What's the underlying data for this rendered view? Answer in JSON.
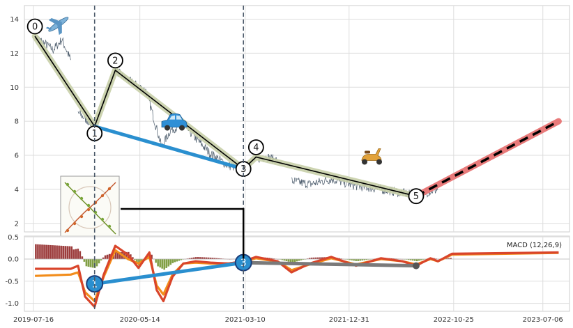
{
  "chart_data": [
    {
      "type": "line",
      "panel": "price",
      "title": "",
      "xlabel": "",
      "ylabel": "",
      "xlim": [
        "2019-06-20",
        "2023-09-20"
      ],
      "ylim": [
        1.5,
        14.8
      ],
      "yticks": [
        2,
        4,
        6,
        8,
        10,
        12,
        14
      ],
      "grid": true,
      "price_segments": [
        {
          "x": [
            "2019-07-20",
            "2019-08-15",
            "2019-09-10",
            "2019-10-05",
            "2019-10-30"
          ],
          "y": [
            13.0,
            12.6,
            12.2,
            12.8,
            11.6
          ]
        },
        {
          "x": [
            "2019-11-20",
            "2020-01-06",
            "2020-02-01",
            "2020-03-05",
            "2020-04-10",
            "2020-06-01",
            "2020-07-15",
            "2020-08-10",
            "2020-09-15",
            "2020-10-20",
            "2020-12-01",
            "2021-01-20",
            "2021-03-05",
            "2021-04-10",
            "2021-05-10",
            "2021-06-10"
          ],
          "y": [
            8.5,
            7.7,
            9.2,
            11.0,
            10.4,
            9.8,
            6.5,
            7.5,
            7.8,
            7.0,
            6.1,
            5.4,
            5.2,
            5.8,
            5.9,
            5.7
          ]
        },
        {
          "x": [
            "2021-07-20",
            "2021-09-10",
            "2021-11-10",
            "2022-01-20",
            "2022-04-01",
            "2022-06-01",
            "2022-07-10",
            "2022-08-20",
            "2022-09-10"
          ],
          "y": [
            4.5,
            4.3,
            4.6,
            4.2,
            4.0,
            3.8,
            3.6,
            3.9,
            4.0
          ]
        }
      ],
      "waves": {
        "labels": [
          "0",
          "1",
          "2",
          "3",
          "4",
          "5"
        ],
        "x": [
          "2019-07-20",
          "2020-01-06",
          "2020-03-05",
          "2021-03-05",
          "2021-04-10",
          "2022-07-10"
        ],
        "y": [
          13.0,
          7.7,
          11.0,
          5.2,
          5.9,
          3.6
        ]
      },
      "blue_trend": {
        "x": [
          "2020-01-06",
          "2021-03-05"
        ],
        "y": [
          7.7,
          5.2
        ]
      },
      "projection": {
        "x": [
          "2022-07-10",
          "2023-08-20"
        ],
        "y": [
          3.6,
          8.0
        ]
      },
      "vlines": [
        "2020-01-06",
        "2021-03-05"
      ],
      "icons": [
        {
          "name": "airplane-icon",
          "x": "2019-09-25",
          "y": 13.7
        },
        {
          "name": "car-icon",
          "x": "2020-08-20",
          "y": 7.9
        },
        {
          "name": "scooter-icon",
          "x": "2022-03-05",
          "y": 5.9
        }
      ]
    },
    {
      "type": "line",
      "panel": "macd",
      "title": "MACD (12,26,9)",
      "xlabel": "",
      "ylabel": "",
      "xlim": [
        "2019-06-20",
        "2023-09-20"
      ],
      "ylim": [
        -1.18,
        0.52
      ],
      "yticks": [
        0.5,
        0.0,
        -0.5,
        -1.0
      ],
      "xticks": [
        "2019-07-16",
        "2020-05-14",
        "2021-03-10",
        "2021-12-31",
        "2022-10-25",
        "2023-07-06"
      ],
      "grid": true,
      "series": [
        {
          "x": [
            "2019-07-20",
            "2019-10-30",
            "2019-11-20",
            "2019-12-10",
            "2020-01-06",
            "2020-02-01",
            "2020-03-05",
            "2020-04-10",
            "2020-05-10",
            "2020-06-10",
            "2020-07-01",
            "2020-07-20",
            "2020-08-15",
            "2020-09-15",
            "2020-10-20",
            "2020-12-01",
            "2021-01-20",
            "2021-03-05",
            "2021-04-10",
            "2021-05-10",
            "2021-06-10",
            "2021-07-20",
            "2021-09-10",
            "2021-11-10",
            "2022-01-20",
            "2022-04-01",
            "2022-06-01",
            "2022-07-10",
            "2022-08-20",
            "2022-09-10",
            "2022-10-20",
            "2023-08-20"
          ],
          "y": [
            -0.22,
            -0.22,
            -0.15,
            -0.85,
            -1.08,
            -0.35,
            0.3,
            0.1,
            -0.2,
            0.15,
            -0.7,
            -0.95,
            -0.4,
            -0.1,
            -0.05,
            -0.08,
            -0.1,
            -0.05,
            0.05,
            0.0,
            -0.05,
            -0.3,
            -0.1,
            0.05,
            -0.15,
            0.02,
            -0.05,
            -0.15,
            0.02,
            -0.05,
            0.12,
            0.15
          ]
        },
        {
          "x": [
            "2019-07-20",
            "2019-10-30",
            "2019-11-20",
            "2019-12-10",
            "2020-01-06",
            "2020-02-01",
            "2020-03-05",
            "2020-04-10",
            "2020-05-10",
            "2020-06-10",
            "2020-07-01",
            "2020-07-20",
            "2020-08-15",
            "2020-09-15",
            "2020-10-20",
            "2020-12-01",
            "2021-01-20",
            "2021-03-05",
            "2021-04-10",
            "2021-05-10",
            "2021-06-10",
            "2021-07-20",
            "2021-09-10",
            "2021-11-10",
            "2022-01-20",
            "2022-04-01",
            "2022-06-01",
            "2022-07-10",
            "2022-08-20",
            "2022-09-10",
            "2022-10-20",
            "2023-08-20"
          ],
          "y": [
            -0.38,
            -0.35,
            -0.3,
            -0.75,
            -0.95,
            -0.4,
            0.2,
            0.0,
            -0.1,
            0.05,
            -0.6,
            -0.8,
            -0.35,
            -0.1,
            -0.08,
            -0.1,
            -0.1,
            -0.06,
            0.02,
            -0.02,
            -0.05,
            -0.25,
            -0.12,
            0.02,
            -0.12,
            0.0,
            -0.05,
            -0.12,
            0.0,
            -0.05,
            0.1,
            0.14
          ]
        }
      ],
      "waves": {
        "labels": [
          "1",
          "3"
        ],
        "x": [
          "2020-01-06",
          "2021-03-05"
        ],
        "y": [
          -0.56,
          -0.08
        ]
      },
      "blue_trend": {
        "x": [
          "2020-01-06",
          "2021-03-05"
        ],
        "y": [
          -0.56,
          -0.08
        ]
      },
      "gray_trend": {
        "x": [
          "2021-03-05",
          "2022-07-10"
        ],
        "y": [
          -0.08,
          -0.15
        ]
      }
    }
  ],
  "colors": {
    "price_line": "#4a5a6a",
    "wave_band": "#c8cfa8",
    "wave_line": "#000000",
    "blue_trend": "#2a8fcf",
    "projection_band": "#e87a7a",
    "macd_line": "#d9452b",
    "signal_line": "#f28c1a",
    "hist_neg": "#8b1a1a",
    "hist_pos": "#6b8e23",
    "gray_trend": "#7a7a7a",
    "vline": "#4a5868",
    "grid": "#dddddd"
  }
}
